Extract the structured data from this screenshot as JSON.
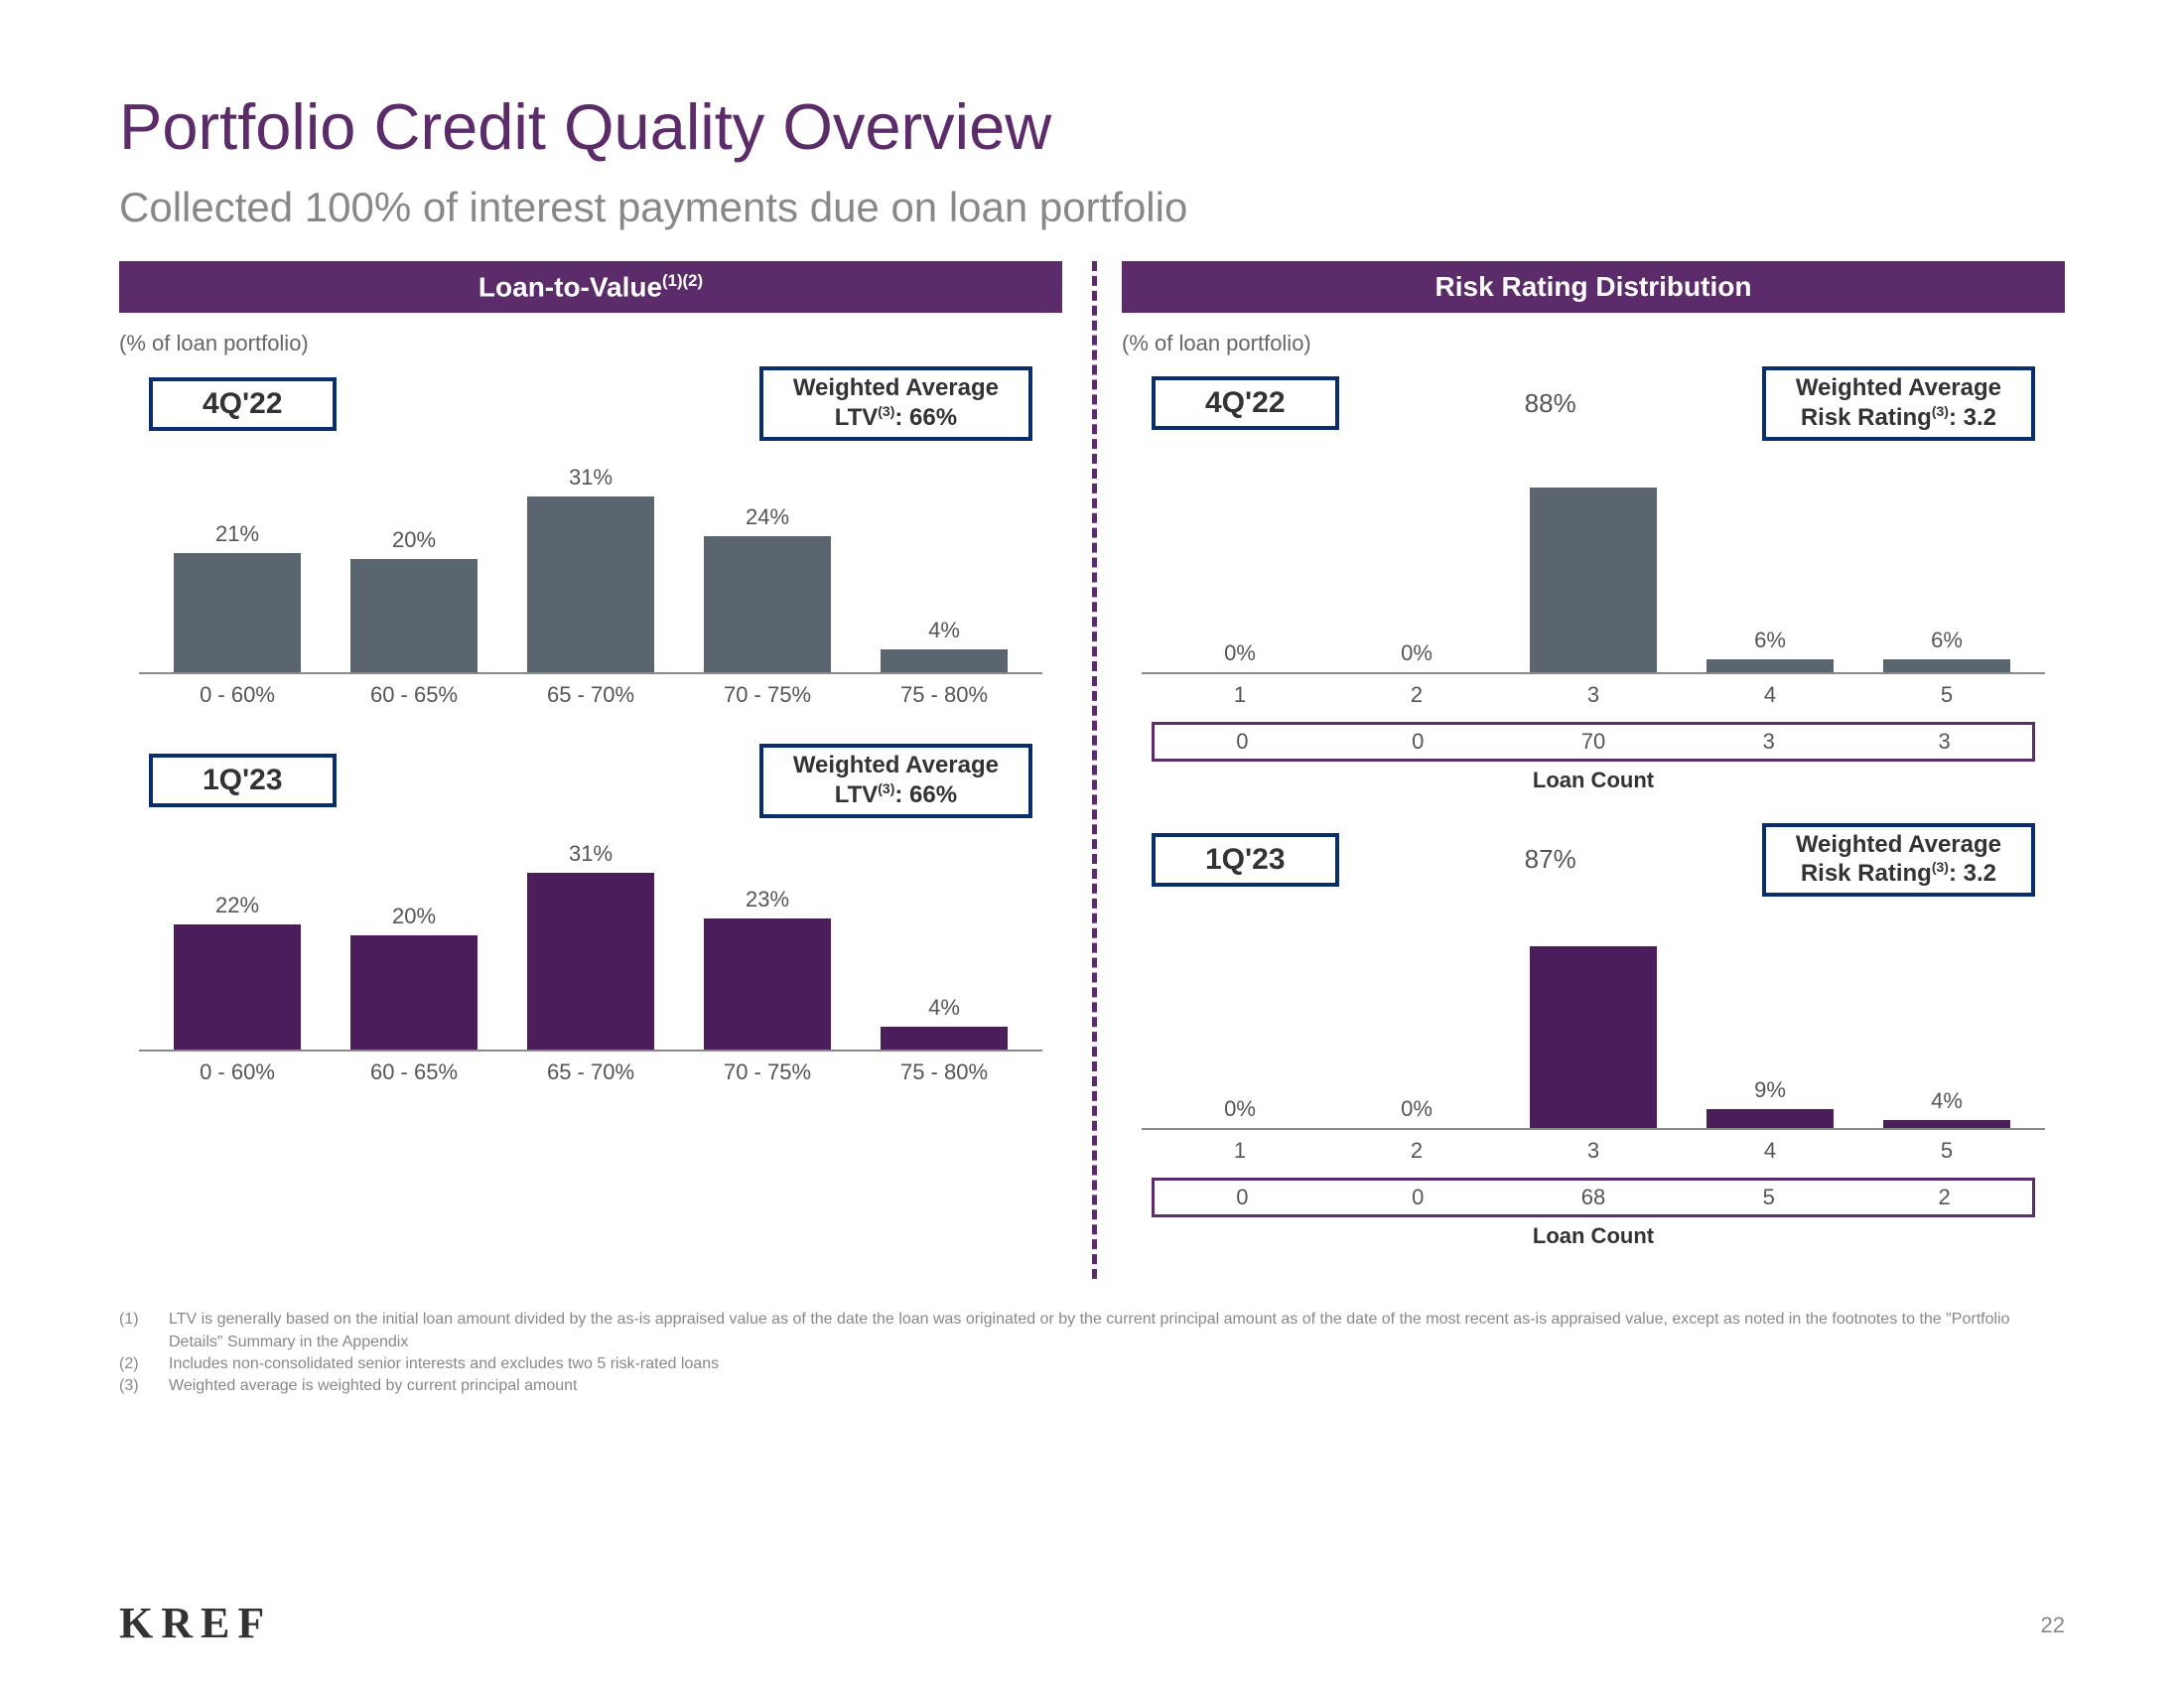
{
  "title": "Portfolio Credit Quality Overview",
  "subtitle": "Collected 100% of interest payments due on loan portfolio",
  "colors": {
    "purple": "#5b2b6a",
    "gray_bar": "#5a6570",
    "purple_bar": "#4b1d5a",
    "text_gray": "#888888",
    "text_dark": "#333333",
    "box_border": "#0a2e6b"
  },
  "left": {
    "header": "Loan-to-Value",
    "header_sup": "(1)(2)",
    "axis_note": "(% of loan portfolio)",
    "top": {
      "period": "4Q'22",
      "avg_l1": "Weighted Average",
      "avg_l2": "LTV",
      "avg_sup": "(3)",
      "avg_val": ": 66%",
      "bar_color": "#5a6570",
      "categories": [
        "0 - 60%",
        "60 - 65%",
        "65 - 70%",
        "70 - 75%",
        "75 - 80%"
      ],
      "values": [
        21,
        20,
        31,
        24,
        4
      ],
      "ymax": 35
    },
    "bottom": {
      "period": "1Q'23",
      "avg_l1": "Weighted Average",
      "avg_l2": "LTV",
      "avg_sup": "(3)",
      "avg_val": ": 66%",
      "bar_color": "#4b1d5a",
      "categories": [
        "0 - 60%",
        "60 - 65%",
        "65 - 70%",
        "70 - 75%",
        "75 - 80%"
      ],
      "values": [
        22,
        20,
        31,
        23,
        4
      ],
      "ymax": 35
    }
  },
  "right": {
    "header": "Risk Rating Distribution",
    "axis_note": "(% of loan portfolio)",
    "top": {
      "period": "4Q'22",
      "peak": "88%",
      "avg_l1": "Weighted Average",
      "avg_l2": "Risk Rating",
      "avg_sup": "(3)",
      "avg_val": ": 3.2",
      "bar_color": "#5a6570",
      "categories": [
        "1",
        "2",
        "3",
        "4",
        "5"
      ],
      "values": [
        0,
        0,
        88,
        6,
        6
      ],
      "ymax": 95,
      "counts": [
        "0",
        "0",
        "70",
        "3",
        "3"
      ],
      "count_label": "Loan Count"
    },
    "bottom": {
      "period": "1Q'23",
      "peak": "87%",
      "avg_l1": "Weighted Average",
      "avg_l2": "Risk Rating",
      "avg_sup": "(3)",
      "avg_val": ": 3.2",
      "bar_color": "#4b1d5a",
      "categories": [
        "1",
        "2",
        "3",
        "4",
        "5"
      ],
      "values": [
        0,
        0,
        87,
        9,
        4
      ],
      "ymax": 95,
      "counts": [
        "0",
        "0",
        "68",
        "5",
        "2"
      ],
      "count_label": "Loan Count"
    }
  },
  "footnotes": [
    "LTV is generally based on the initial loan amount divided by the as-is appraised value as of the date the loan was originated or by the current principal amount as of the date of the most recent as-is appraised value, except as noted in the footnotes to the \"Portfolio Details\" Summary in the Appendix",
    "Includes non-consolidated senior interests and excludes two 5 risk-rated loans",
    "Weighted average is weighted by current principal amount"
  ],
  "brand": "KREF",
  "page": "22"
}
